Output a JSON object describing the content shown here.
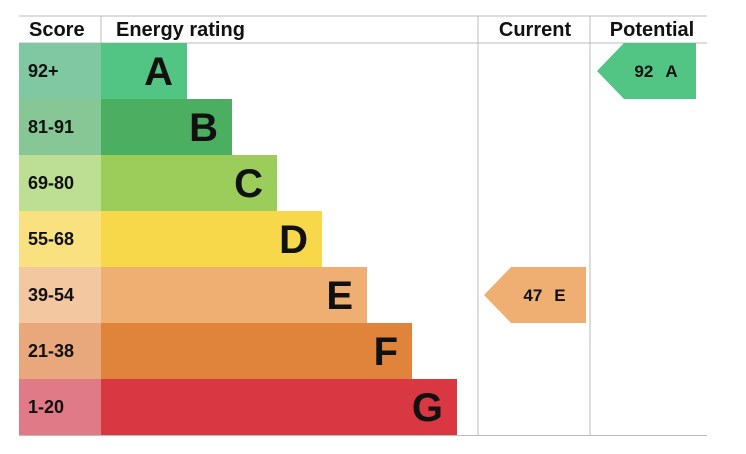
{
  "header": {
    "score": "Score",
    "energy_rating": "Energy rating",
    "current": "Current",
    "potential": "Potential"
  },
  "bands": [
    {
      "score": "92+",
      "letter": "A",
      "color": "#52c584",
      "score_color": "#80c8a2"
    },
    {
      "score": "81-91",
      "letter": "B",
      "color": "#4bae61",
      "score_color": "#86c795"
    },
    {
      "score": "69-80",
      "letter": "C",
      "color": "#9ccc59",
      "score_color": "#bddf93"
    },
    {
      "score": "55-68",
      "letter": "D",
      "color": "#f6d84a",
      "score_color": "#f8e17e"
    },
    {
      "score": "39-54",
      "letter": "E",
      "color": "#efaf72",
      "score_color": "#f3c8a0"
    },
    {
      "score": "21-38",
      "letter": "F",
      "color": "#e0843c",
      "score_color": "#e8a87c"
    },
    {
      "score": "1-20",
      "letter": "G",
      "color": "#d93843",
      "score_color": "#e07a86"
    }
  ],
  "current": {
    "value": 47,
    "label": "E"
  },
  "potential": {
    "value": 92,
    "label": "A"
  }
}
